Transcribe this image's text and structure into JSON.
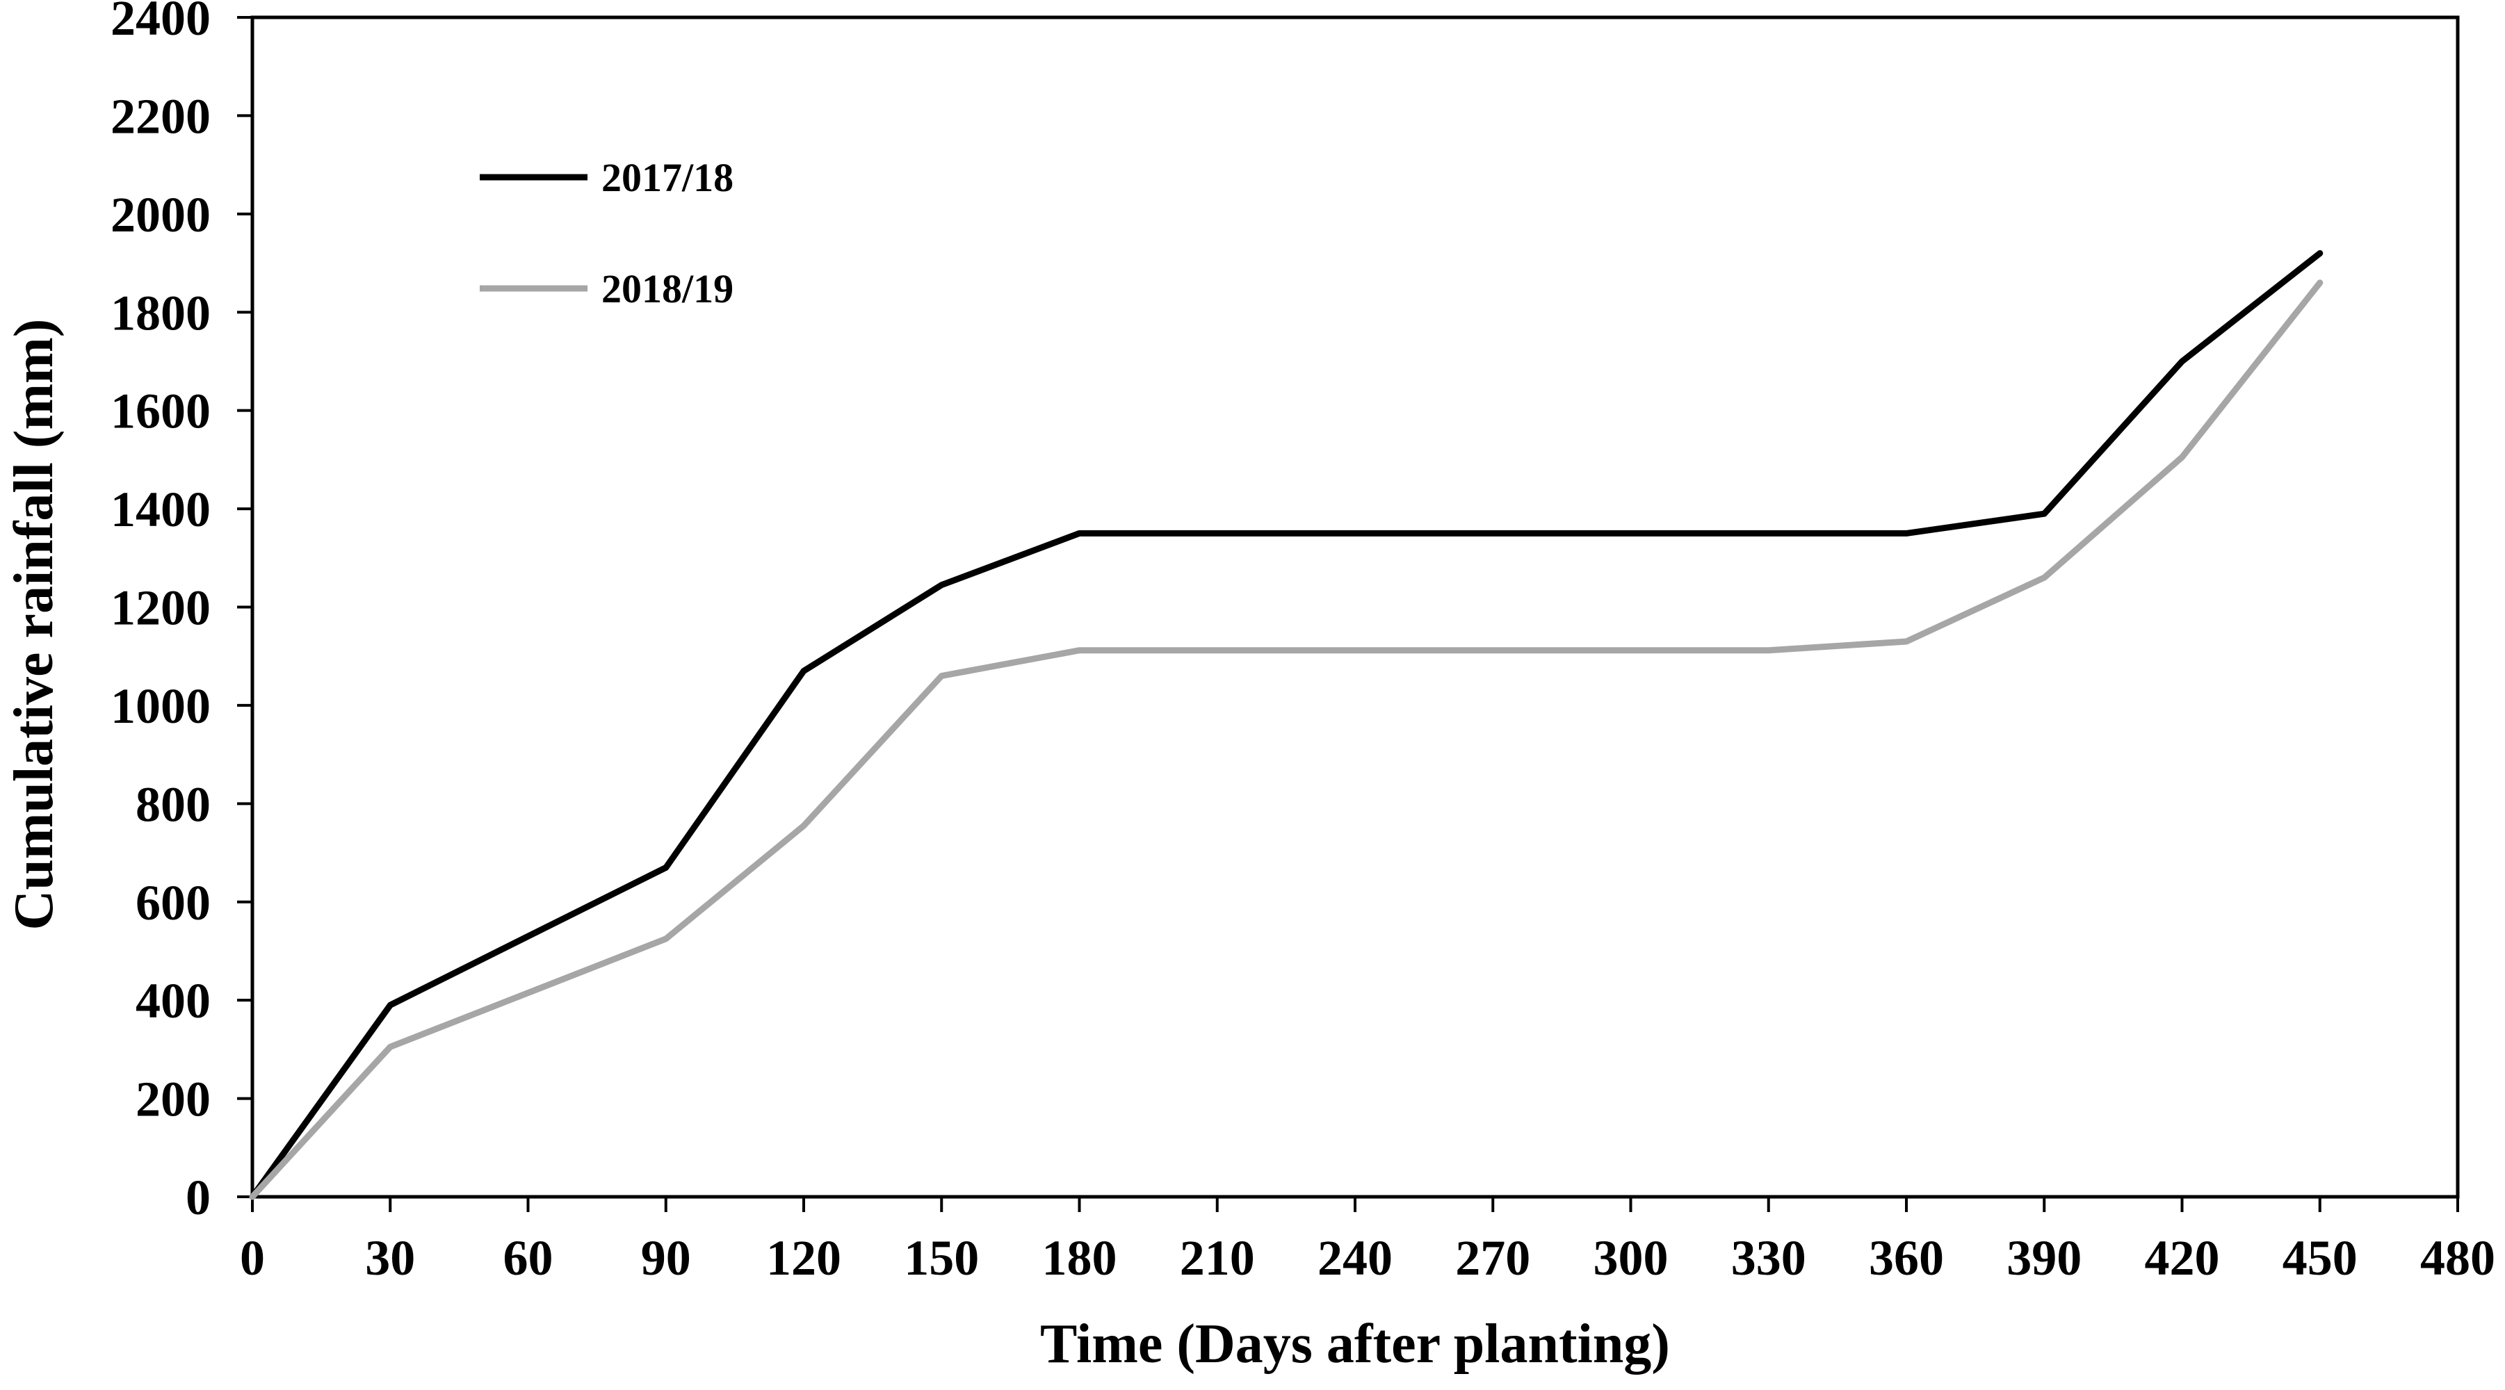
{
  "chart_data": {
    "type": "line",
    "title": "",
    "xlabel": "Time (Days after planting)",
    "ylabel": "Cumulative rainfall (mm)",
    "xlim": [
      0,
      480
    ],
    "ylim": [
      0,
      2400
    ],
    "x_ticks": [
      0,
      30,
      60,
      90,
      120,
      150,
      180,
      210,
      240,
      270,
      300,
      330,
      360,
      390,
      420,
      450,
      480
    ],
    "y_ticks": [
      0,
      200,
      400,
      600,
      800,
      1000,
      1200,
      1400,
      1600,
      1800,
      2000,
      2200,
      2400
    ],
    "grid": false,
    "legend_position": "top-left",
    "x": [
      0,
      30,
      60,
      90,
      120,
      150,
      180,
      210,
      240,
      270,
      300,
      330,
      360,
      390,
      420,
      450
    ],
    "series": [
      {
        "name": "2017/18",
        "color": "#000000",
        "values": [
          0,
          390,
          530,
          670,
          1070,
          1245,
          1350,
          1350,
          1350,
          1350,
          1350,
          1350,
          1350,
          1390,
          1700,
          1920
        ]
      },
      {
        "name": "2018/19",
        "color": "#a6a6a6",
        "values": [
          0,
          305,
          415,
          525,
          755,
          1060,
          1112,
          1112,
          1112,
          1112,
          1112,
          1112,
          1130,
          1260,
          1505,
          1860
        ]
      }
    ]
  }
}
